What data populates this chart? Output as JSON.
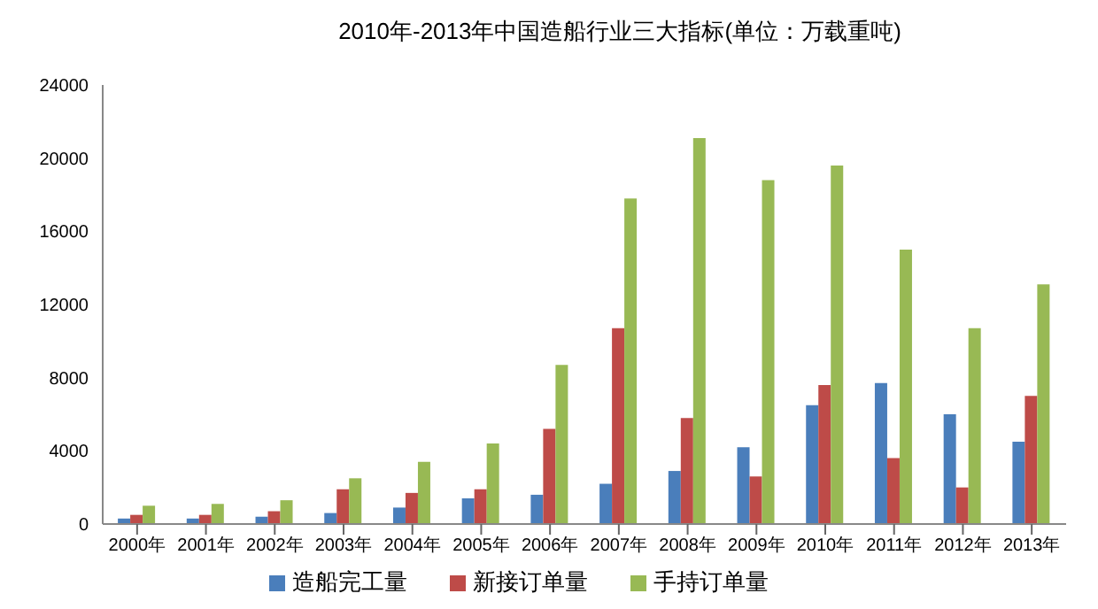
{
  "chart_data": {
    "type": "bar",
    "title": "2010年-2013年中国造船行业三大指标(单位：万载重吨)",
    "categories": [
      "2000年",
      "2001年",
      "2002年",
      "2003年",
      "2004年",
      "2005年",
      "2006年",
      "2007年",
      "2008年",
      "2009年",
      "2010年",
      "2011年",
      "2012年",
      "2013年"
    ],
    "series": [
      {
        "name": "造船完工量",
        "color": "#4a7ebb",
        "values": [
          300,
          300,
          400,
          600,
          900,
          1400,
          1600,
          2200,
          2900,
          4200,
          6500,
          7700,
          6000,
          4500
        ]
      },
      {
        "name": "新接订单量",
        "color": "#be4b48",
        "values": [
          500,
          500,
          700,
          1900,
          1700,
          1900,
          5200,
          10700,
          5800,
          2600,
          7600,
          3600,
          2000,
          7000
        ]
      },
      {
        "name": "手持订单量",
        "color": "#98b954",
        "values": [
          1000,
          1100,
          1300,
          2500,
          3400,
          4400,
          8700,
          17800,
          21100,
          18800,
          19600,
          15000,
          10700,
          13100
        ]
      }
    ],
    "ylim": [
      0,
      24000
    ],
    "yticks": [
      0,
      4000,
      8000,
      12000,
      16000,
      20000,
      24000
    ],
    "grid": false,
    "legend": "bottom"
  }
}
